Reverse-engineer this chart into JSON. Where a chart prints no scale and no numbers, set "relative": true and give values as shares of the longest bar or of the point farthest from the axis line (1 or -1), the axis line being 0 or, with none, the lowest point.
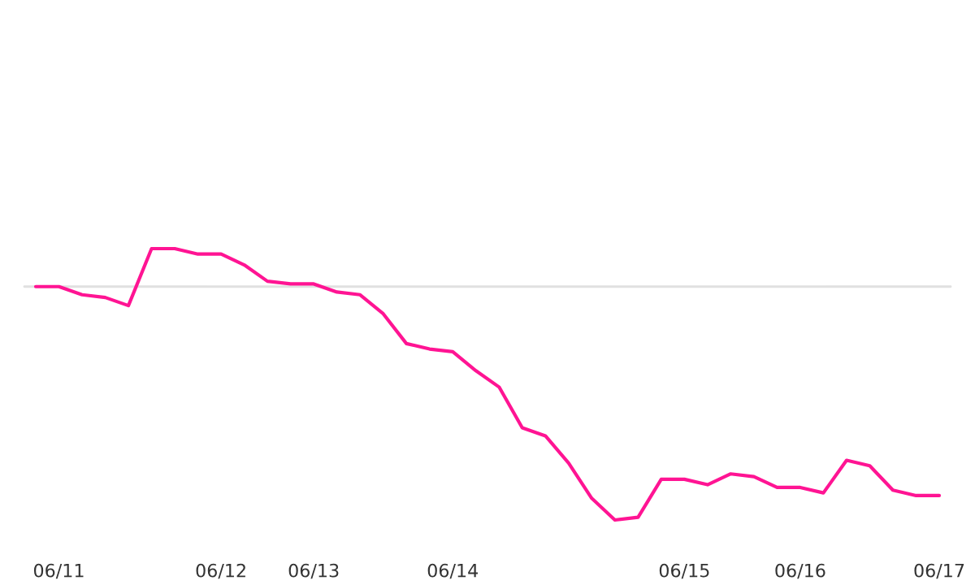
{
  "chart_data": {
    "type": "line",
    "relative": true,
    "categories": [
      null,
      "06/11",
      null,
      null,
      null,
      null,
      null,
      null,
      "06/12",
      null,
      null,
      null,
      "06/13",
      null,
      null,
      null,
      null,
      null,
      "06/14",
      null,
      null,
      null,
      null,
      null,
      null,
      null,
      null,
      null,
      "06/15",
      null,
      null,
      null,
      null,
      "06/16",
      null,
      null,
      null,
      null,
      null,
      "06/17"
    ],
    "series": [
      {
        "color": "#ff1493",
        "values": [
          0.86,
          0.86,
          0.83,
          0.82,
          0.79,
          1,
          1,
          0.98,
          0.98,
          0.94,
          0.88,
          0.87,
          0.87,
          0.84,
          0.83,
          0.76,
          0.65,
          0.63,
          0.62,
          0.55,
          0.49,
          0.34,
          0.31,
          0.21,
          0.08,
          0,
          0.01,
          0.15,
          0.15,
          0.13,
          0.17,
          0.16,
          0.12,
          0.12,
          0.1,
          0.22,
          0.2,
          0.11,
          0.09,
          0.09
        ]
      }
    ],
    "ref_lines": [
      {
        "axis": "y",
        "value": 0.86,
        "color": "#e0e0e0"
      }
    ],
    "grid": false,
    "legend": false,
    "marker": "none",
    "line_style": "solid"
  }
}
